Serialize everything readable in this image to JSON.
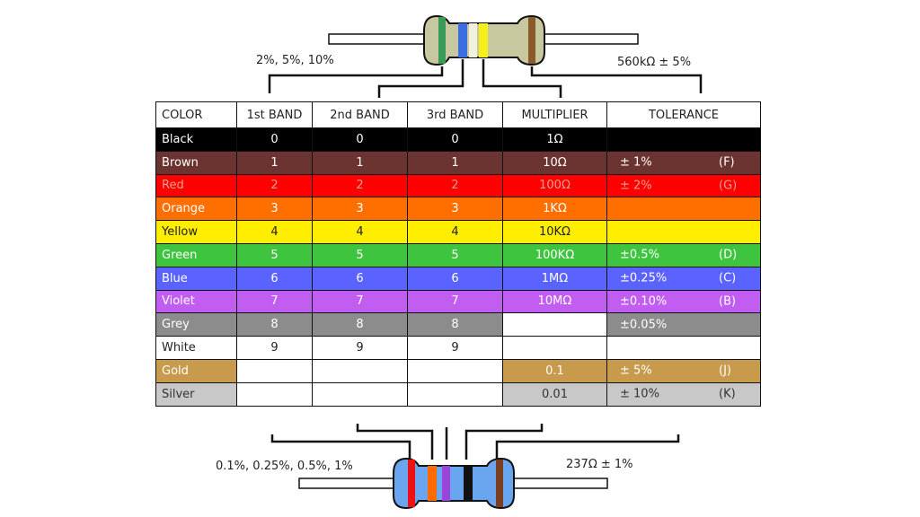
{
  "top_resistor": {
    "left_label": "2%, 5%, 10%",
    "right_label": "560kΩ ± 5%",
    "body_color": "#c8c8a0",
    "bands": [
      "#3a9a5a",
      "#3b6ee0",
      "#f2f0e0",
      "#f5f01a",
      "#8b5a2b"
    ]
  },
  "bottom_resistor": {
    "left_label": "0.1%, 0.25%, 0.5%, 1%",
    "right_label": "237Ω ± 1%",
    "body_color": "#6aa6f0",
    "bands": [
      "#ee1111",
      "#ff6a00",
      "#9b45d8",
      "#111111",
      "#7a3f1e"
    ]
  },
  "table": {
    "headers": [
      "COLOR",
      "1st BAND",
      "2nd BAND",
      "3rd BAND",
      "MULTIPLIER",
      "TOLERANCE"
    ],
    "rows": [
      {
        "color": "Black",
        "bg": "#000000",
        "fg": "#ffffff",
        "b1": "0",
        "b2": "0",
        "b3": "0",
        "mult": "1Ω",
        "tol": "",
        "code": ""
      },
      {
        "color": "Brown",
        "bg": "#6b3430",
        "fg": "#ffffff",
        "b1": "1",
        "b2": "1",
        "b3": "1",
        "mult": "10Ω",
        "tol": "±   1%",
        "code": "(F)"
      },
      {
        "color": "Red",
        "bg": "#ff0000",
        "fg": "#e8a090",
        "b1": "2",
        "b2": "2",
        "b3": "2",
        "mult": "100Ω",
        "tol": "±   2%",
        "code": "(G)"
      },
      {
        "color": "Orange",
        "bg": "#ff6f00",
        "fg": "#ffffff",
        "b1": "3",
        "b2": "3",
        "b3": "3",
        "mult": "1KΩ",
        "tol": "",
        "code": ""
      },
      {
        "color": "Yellow",
        "bg": "#ffee00",
        "fg": "#222222",
        "b1": "4",
        "b2": "4",
        "b3": "4",
        "mult": "10KΩ",
        "tol": "",
        "code": ""
      },
      {
        "color": "Green",
        "bg": "#3ec43e",
        "fg": "#ffffff",
        "b1": "5",
        "b2": "5",
        "b3": "5",
        "mult": "100KΩ",
        "tol": "±0.5%",
        "code": "(D)"
      },
      {
        "color": "Blue",
        "bg": "#5a63ff",
        "fg": "#ffffff",
        "b1": "6",
        "b2": "6",
        "b3": "6",
        "mult": "1MΩ",
        "tol": "±0.25%",
        "code": "(C)"
      },
      {
        "color": "Violet",
        "bg": "#c25df2",
        "fg": "#ffffff",
        "b1": "7",
        "b2": "7",
        "b3": "7",
        "mult": "10MΩ",
        "tol": "±0.10%",
        "code": "(B)"
      },
      {
        "color": "Grey",
        "bg": "#8c8c8c",
        "fg": "#ffffff",
        "b1": "8",
        "b2": "8",
        "b3": "8",
        "mult": "",
        "tol": "±0.05%",
        "code": ""
      },
      {
        "color": "White",
        "bg": "#ffffff",
        "fg": "#222222",
        "b1": "9",
        "b2": "9",
        "b3": "9",
        "mult": "",
        "tol": "",
        "code": ""
      },
      {
        "color": "Gold",
        "bg": "#c89a4b",
        "fg": "#ffffff",
        "b1": "",
        "b2": "",
        "b3": "",
        "mult": "0.1",
        "tol": "±   5%",
        "code": "(J)"
      },
      {
        "color": "Silver",
        "bg": "#c8c8c8",
        "fg": "#333333",
        "b1": "",
        "b2": "",
        "b3": "",
        "mult": "0.01",
        "tol": "±  10%",
        "code": "(K)"
      }
    ]
  }
}
